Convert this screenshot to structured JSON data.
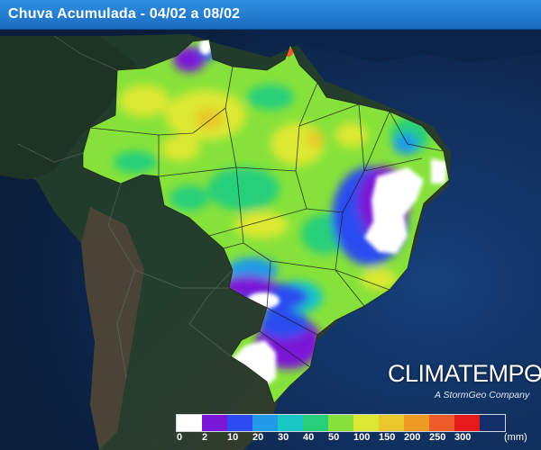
{
  "title": "Chuva Acumulada - 04/02 a 08/02",
  "logo": {
    "brand": "CLIMATEMPO",
    "tagline": "A StormGeo Company"
  },
  "legend": {
    "unit": "(mm)",
    "classes": [
      {
        "label": "0",
        "color": "#ffffff"
      },
      {
        "label": "2",
        "color": "#7a16d6"
      },
      {
        "label": "10",
        "color": "#2c4bf0"
      },
      {
        "label": "20",
        "color": "#1f9be8"
      },
      {
        "label": "30",
        "color": "#18c6c4"
      },
      {
        "label": "40",
        "color": "#27cf7a"
      },
      {
        "label": "50",
        "color": "#86e23a"
      },
      {
        "label": "100",
        "color": "#dce832"
      },
      {
        "label": "150",
        "color": "#e9c82c"
      },
      {
        "label": "200",
        "color": "#ef9a24"
      },
      {
        "label": "250",
        "color": "#ef5c2a"
      },
      {
        "label": "300",
        "color": "#e51a1a"
      },
      {
        "label": "",
        "color": "#14306b"
      }
    ]
  }
}
